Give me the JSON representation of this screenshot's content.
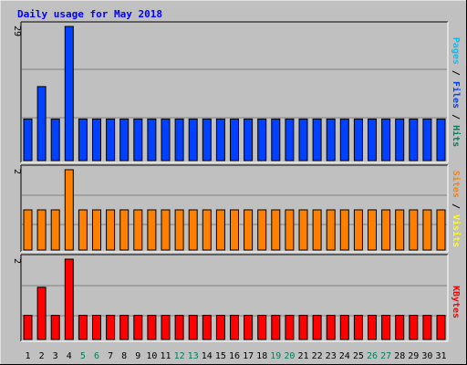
{
  "title": "Daily usage for May 2018",
  "colors": {
    "background": "#c0c0c0",
    "title": "#0000ff",
    "hits": "#00805c",
    "files": "#0040ff",
    "pages": "#00c0ff",
    "visits": "#ffff00",
    "sites": "#ff8000",
    "kbytes": "#ff0000",
    "weekday_label": "#000000",
    "weekend_label": "#00805c",
    "gridline": "#808080"
  },
  "chart_data": [
    {
      "type": "bar",
      "panel": "top",
      "ymax_label": "29",
      "ylim": [
        0,
        29
      ],
      "legend_parts": [
        "Pages",
        "Files",
        "Hits"
      ],
      "x": [
        1,
        2,
        3,
        4,
        5,
        6,
        7,
        8,
        9,
        10,
        11,
        12,
        13,
        14,
        15,
        16,
        17,
        18,
        19,
        20,
        21,
        22,
        23,
        24,
        25,
        26,
        27,
        28,
        29,
        30,
        31
      ],
      "series": [
        {
          "name": "Files",
          "color_key": "files",
          "values": [
            9,
            16,
            9,
            29,
            9,
            9,
            9,
            9,
            9,
            9,
            9,
            9,
            9,
            9,
            9,
            9,
            9,
            9,
            9,
            9,
            9,
            9,
            9,
            9,
            9,
            9,
            9,
            9,
            9,
            9,
            9
          ]
        }
      ]
    },
    {
      "type": "bar",
      "panel": "middle",
      "ymax_label": "2",
      "ylim": [
        0,
        2
      ],
      "legend_parts": [
        "Sites",
        "Visits"
      ],
      "x": [
        1,
        2,
        3,
        4,
        5,
        6,
        7,
        8,
        9,
        10,
        11,
        12,
        13,
        14,
        15,
        16,
        17,
        18,
        19,
        20,
        21,
        22,
        23,
        24,
        25,
        26,
        27,
        28,
        29,
        30,
        31
      ],
      "series": [
        {
          "name": "Sites",
          "color_key": "sites",
          "values": [
            1,
            1,
            1,
            2,
            1,
            1,
            1,
            1,
            1,
            1,
            1,
            1,
            1,
            1,
            1,
            1,
            1,
            1,
            1,
            1,
            1,
            1,
            1,
            1,
            1,
            1,
            1,
            1,
            1,
            1,
            1
          ]
        }
      ]
    },
    {
      "type": "bar",
      "panel": "bottom",
      "ymax_label": "2",
      "ylim": [
        0,
        2
      ],
      "legend_parts": [
        "KBytes"
      ],
      "x": [
        1,
        2,
        3,
        4,
        5,
        6,
        7,
        8,
        9,
        10,
        11,
        12,
        13,
        14,
        15,
        16,
        17,
        18,
        19,
        20,
        21,
        22,
        23,
        24,
        25,
        26,
        27,
        28,
        29,
        30,
        31
      ],
      "series": [
        {
          "name": "KBytes",
          "color_key": "kbytes",
          "values": [
            0.6,
            1.3,
            0.6,
            2,
            0.6,
            0.6,
            0.6,
            0.6,
            0.6,
            0.6,
            0.6,
            0.6,
            0.6,
            0.6,
            0.6,
            0.6,
            0.6,
            0.6,
            0.6,
            0.6,
            0.6,
            0.6,
            0.6,
            0.6,
            0.6,
            0.6,
            0.6,
            0.6,
            0.6,
            0.6,
            0.6
          ]
        }
      ]
    }
  ],
  "x_labels": [
    "1",
    "2",
    "3",
    "4",
    "5",
    "6",
    "7",
    "8",
    "9",
    "10",
    "11",
    "12",
    "13",
    "14",
    "15",
    "16",
    "17",
    "18",
    "19",
    "20",
    "21",
    "22",
    "23",
    "24",
    "25",
    "26",
    "27",
    "28",
    "29",
    "30",
    "31"
  ],
  "weekend_days": [
    5,
    6,
    12,
    13,
    19,
    20,
    26,
    27
  ]
}
